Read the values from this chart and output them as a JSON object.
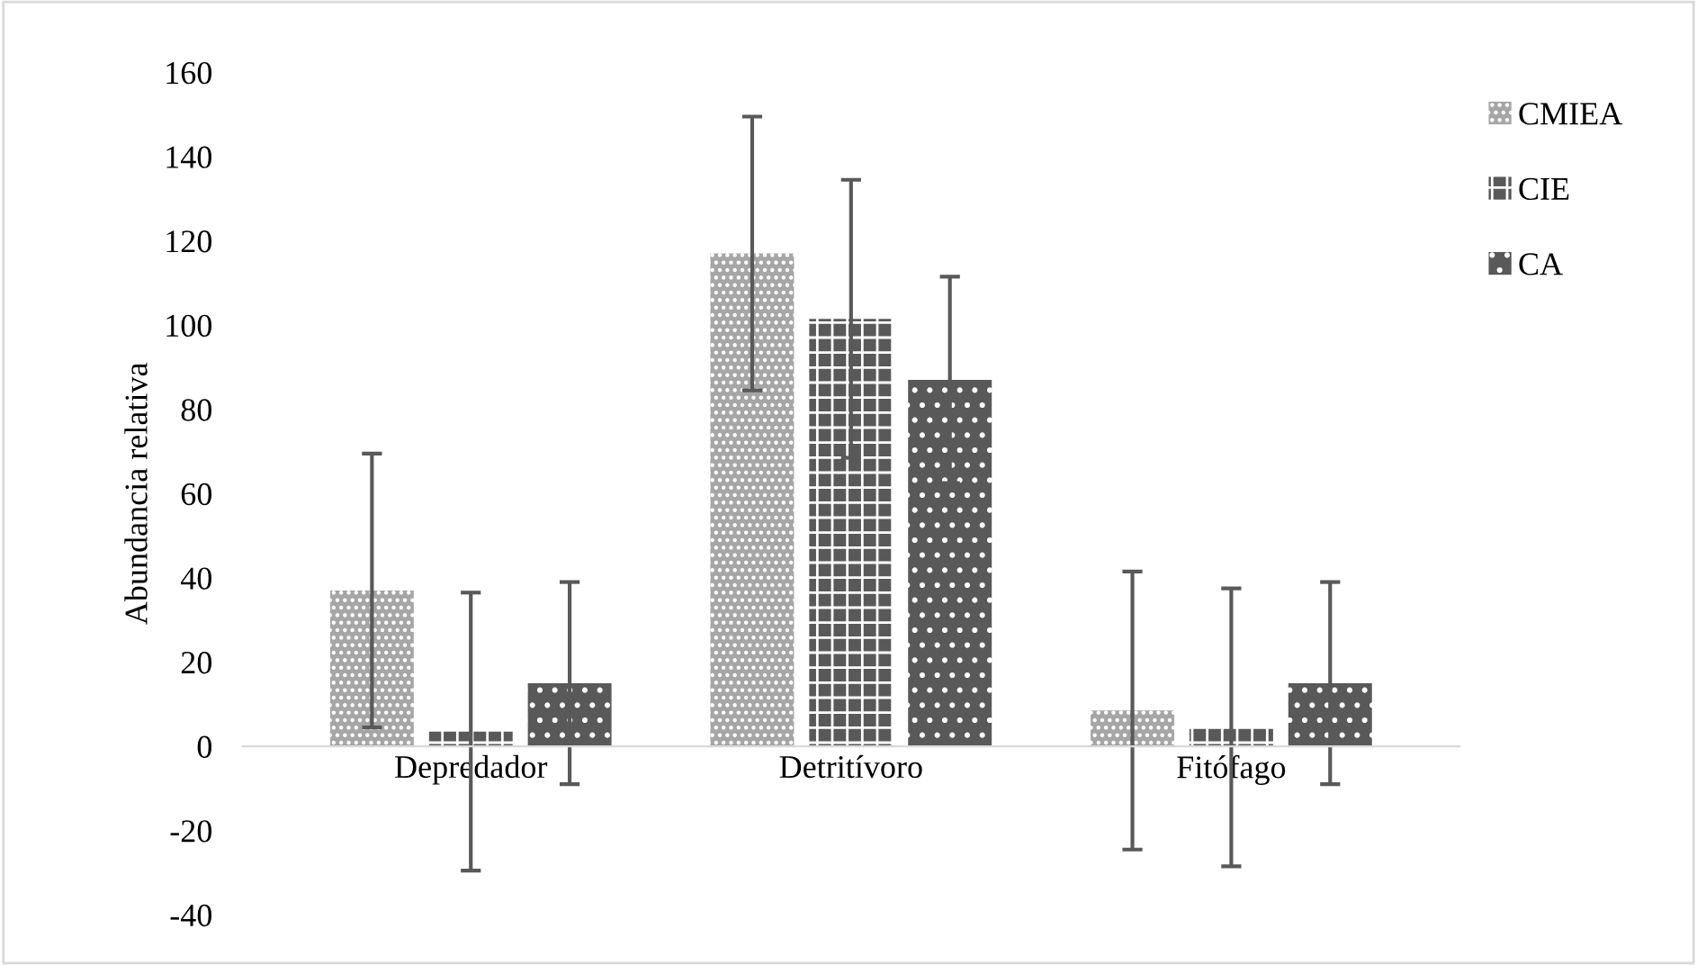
{
  "chart_data": {
    "type": "bar",
    "ylabel": "Abundancia relativa",
    "categories": [
      "Depredador",
      "Detritívoro",
      "Fitófago"
    ],
    "series": [
      {
        "name": "CMIEA",
        "color": "#a6a6a6",
        "values": [
          37,
          117,
          8.5
        ],
        "errors": [
          32.5,
          32.5,
          33
        ]
      },
      {
        "name": "CIE",
        "color": "#595959",
        "values": [
          3.5,
          101.5,
          4.5
        ],
        "errors": [
          33,
          33,
          33
        ]
      },
      {
        "name": "CA",
        "color": "#595959",
        "values": [
          15,
          87,
          15
        ],
        "errors": [
          24,
          24.5,
          24
        ]
      }
    ],
    "ylim": [
      -40,
      160
    ],
    "yticks": [
      -40,
      -20,
      0,
      20,
      40,
      60,
      80,
      100,
      120,
      140,
      160
    ],
    "grid": false,
    "legend": "top right"
  }
}
